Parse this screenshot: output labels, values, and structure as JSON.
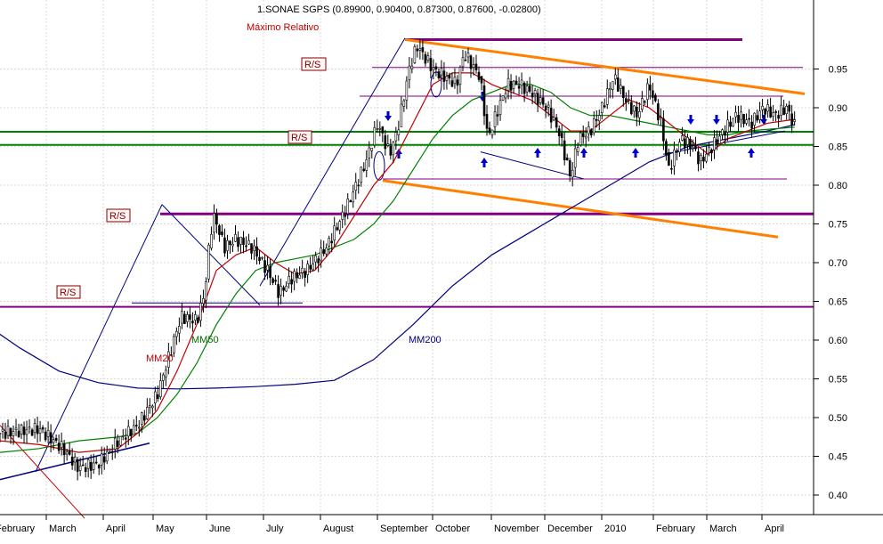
{
  "chart_data": {
    "type": "candlestick",
    "title": "1.SONAE SGPS (0.89900, 0.90400, 0.87300, 0.87600, -0.02800)",
    "subtitle": "Máximo Relativo",
    "ylim": [
      0.37,
      1.015
    ],
    "yticks": [
      0.4,
      0.45,
      0.5,
      0.55,
      0.6,
      0.65,
      0.7,
      0.75,
      0.8,
      0.85,
      0.9,
      0.95
    ],
    "grid": true,
    "xlabels": [
      "February",
      "March",
      "April",
      "May",
      "June",
      "July",
      "August",
      "September",
      "October",
      "November",
      "December",
      "2010",
      "February",
      "March",
      "April"
    ],
    "ma_labels": [
      "MM20",
      "MM50",
      "MM200"
    ],
    "rs_labels": [
      "R/S",
      "R/S",
      "R/S",
      "R/S"
    ],
    "price": [
      [
        0,
        0.48
      ],
      [
        1,
        0.485
      ],
      [
        1.6,
        0.46
      ],
      [
        2,
        0.435
      ],
      [
        2.5,
        0.44
      ],
      [
        3,
        0.47
      ],
      [
        3.5,
        0.49
      ],
      [
        4,
        0.53
      ],
      [
        4.3,
        0.58
      ],
      [
        4.6,
        0.63
      ],
      [
        5,
        0.625
      ],
      [
        5.2,
        0.66
      ],
      [
        5.35,
        0.74
      ],
      [
        5.45,
        0.76
      ],
      [
        5.7,
        0.72
      ],
      [
        6,
        0.73
      ],
      [
        6.4,
        0.72
      ],
      [
        6.8,
        0.69
      ],
      [
        7.1,
        0.66
      ],
      [
        7.4,
        0.68
      ],
      [
        7.8,
        0.69
      ],
      [
        8.3,
        0.72
      ],
      [
        8.8,
        0.77
      ],
      [
        9.3,
        0.83
      ],
      [
        9.6,
        0.88
      ],
      [
        9.9,
        0.84
      ],
      [
        10.1,
        0.87
      ],
      [
        10.4,
        0.95
      ],
      [
        10.6,
        0.98
      ],
      [
        11,
        0.95
      ],
      [
        11.3,
        0.94
      ],
      [
        11.6,
        0.93
      ],
      [
        11.8,
        0.97
      ],
      [
        12.2,
        0.94
      ],
      [
        12.4,
        0.86
      ],
      [
        12.6,
        0.89
      ],
      [
        12.9,
        0.93
      ],
      [
        13.2,
        0.93
      ],
      [
        13.5,
        0.92
      ],
      [
        13.9,
        0.9
      ],
      [
        14.2,
        0.87
      ],
      [
        14.5,
        0.81
      ],
      [
        14.7,
        0.86
      ],
      [
        15,
        0.87
      ],
      [
        15.3,
        0.9
      ],
      [
        15.6,
        0.94
      ],
      [
        15.9,
        0.91
      ],
      [
        16.2,
        0.89
      ],
      [
        16.5,
        0.93
      ],
      [
        16.8,
        0.88
      ],
      [
        17,
        0.82
      ],
      [
        17.3,
        0.86
      ],
      [
        17.6,
        0.85
      ],
      [
        17.8,
        0.83
      ],
      [
        18.1,
        0.85
      ],
      [
        18.4,
        0.87
      ],
      [
        18.7,
        0.89
      ],
      [
        19.1,
        0.88
      ],
      [
        19.4,
        0.9
      ],
      [
        19.7,
        0.89
      ],
      [
        20,
        0.9
      ],
      [
        20.2,
        0.876
      ]
    ],
    "mm20": [
      [
        0,
        0.47
      ],
      [
        1,
        0.465
      ],
      [
        2,
        0.455
      ],
      [
        3,
        0.46
      ],
      [
        3.5,
        0.48
      ],
      [
        4,
        0.51
      ],
      [
        4.5,
        0.56
      ],
      [
        5,
        0.62
      ],
      [
        5.5,
        0.69
      ],
      [
        6,
        0.71
      ],
      [
        6.5,
        0.72
      ],
      [
        7,
        0.7
      ],
      [
        7.5,
        0.685
      ],
      [
        8,
        0.69
      ],
      [
        8.5,
        0.72
      ],
      [
        9,
        0.76
      ],
      [
        9.5,
        0.8
      ],
      [
        10,
        0.83
      ],
      [
        10.5,
        0.88
      ],
      [
        11,
        0.93
      ],
      [
        11.5,
        0.945
      ],
      [
        12,
        0.945
      ],
      [
        12.5,
        0.93
      ],
      [
        13,
        0.92
      ],
      [
        13.5,
        0.91
      ],
      [
        14,
        0.89
      ],
      [
        14.5,
        0.87
      ],
      [
        15,
        0.87
      ],
      [
        15.5,
        0.89
      ],
      [
        16,
        0.91
      ],
      [
        16.5,
        0.9
      ],
      [
        17,
        0.88
      ],
      [
        17.5,
        0.86
      ],
      [
        18,
        0.84
      ],
      [
        18.5,
        0.86
      ],
      [
        19,
        0.87
      ],
      [
        19.5,
        0.88
      ],
      [
        20.2,
        0.885
      ]
    ],
    "mm50": [
      [
        0,
        0.455
      ],
      [
        1,
        0.46
      ],
      [
        2,
        0.47
      ],
      [
        3,
        0.475
      ],
      [
        3.5,
        0.48
      ],
      [
        4,
        0.5
      ],
      [
        4.5,
        0.53
      ],
      [
        5,
        0.57
      ],
      [
        5.5,
        0.62
      ],
      [
        6,
        0.66
      ],
      [
        6.5,
        0.69
      ],
      [
        7,
        0.7
      ],
      [
        7.5,
        0.705
      ],
      [
        8,
        0.71
      ],
      [
        8.5,
        0.72
      ],
      [
        9,
        0.73
      ],
      [
        9.5,
        0.75
      ],
      [
        10,
        0.78
      ],
      [
        10.5,
        0.82
      ],
      [
        11,
        0.86
      ],
      [
        11.5,
        0.89
      ],
      [
        12,
        0.91
      ],
      [
        12.5,
        0.92
      ],
      [
        13,
        0.93
      ],
      [
        13.5,
        0.93
      ],
      [
        14,
        0.92
      ],
      [
        14.5,
        0.9
      ],
      [
        15,
        0.89
      ],
      [
        15.5,
        0.89
      ],
      [
        16,
        0.885
      ],
      [
        16.5,
        0.88
      ],
      [
        17,
        0.875
      ],
      [
        17.5,
        0.87
      ],
      [
        18,
        0.865
      ],
      [
        18.5,
        0.865
      ],
      [
        19,
        0.87
      ],
      [
        20.2,
        0.875
      ]
    ],
    "mm200": [
      [
        -0.5,
        0.625
      ],
      [
        0.5,
        0.59
      ],
      [
        1.5,
        0.56
      ],
      [
        2.5,
        0.545
      ],
      [
        3.5,
        0.538
      ],
      [
        4.5,
        0.537
      ],
      [
        5.5,
        0.538
      ],
      [
        6.5,
        0.54
      ],
      [
        7.5,
        0.543
      ],
      [
        8.5,
        0.548
      ],
      [
        9.5,
        0.575
      ],
      [
        10.5,
        0.62
      ],
      [
        11.5,
        0.67
      ],
      [
        12.5,
        0.71
      ],
      [
        13.5,
        0.74
      ],
      [
        14.5,
        0.77
      ],
      [
        15.5,
        0.8
      ],
      [
        16.5,
        0.83
      ],
      [
        17.5,
        0.85
      ],
      [
        18.5,
        0.86
      ],
      [
        19.5,
        0.87
      ],
      [
        20.2,
        0.878
      ]
    ]
  }
}
